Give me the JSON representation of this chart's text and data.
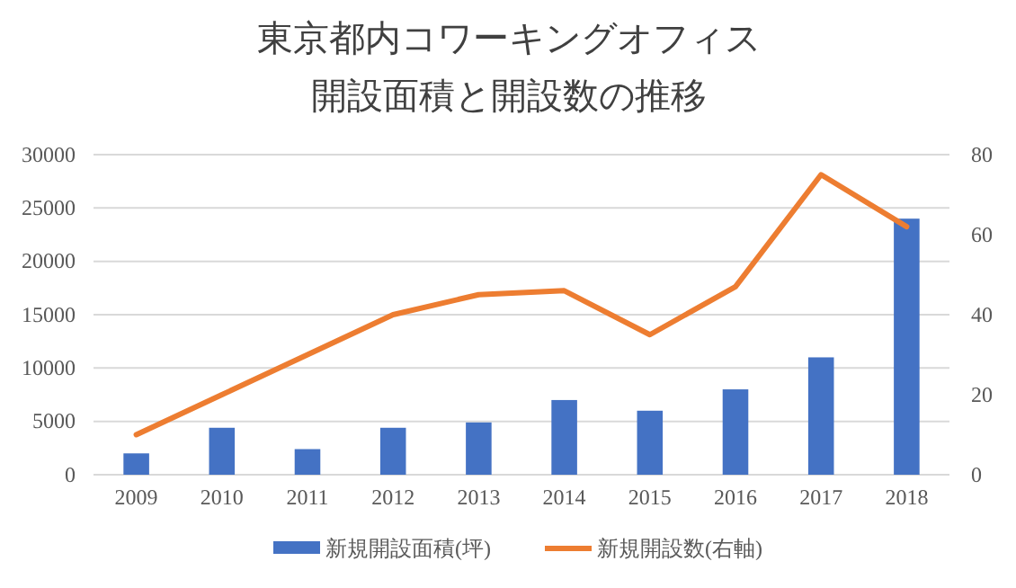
{
  "chart_data": {
    "type": "bar",
    "title": "東京都内コワーキングオフィス",
    "subtitle": "開設面積と開設数の推移",
    "categories": [
      "2009",
      "2010",
      "2011",
      "2012",
      "2013",
      "2014",
      "2015",
      "2016",
      "2017",
      "2018"
    ],
    "series": [
      {
        "name": "新規開設面積(坪)",
        "color": "#4472c4",
        "values": [
          2000,
          4400,
          2400,
          4400,
          4900,
          7000,
          6000,
          8000,
          11000,
          24000
        ]
      },
      {
        "name": "新規開設数(右軸)",
        "color": "#ed7d31",
        "type": "line",
        "axis": "y2",
        "values": [
          10,
          20,
          30,
          40,
          45,
          46,
          35,
          47,
          75,
          62
        ]
      }
    ],
    "ylim": [
      0,
      30000
    ],
    "yticks": [
      0,
      5000,
      10000,
      15000,
      20000,
      25000,
      30000
    ],
    "y2lim": [
      0,
      80
    ],
    "y2ticks": [
      0,
      20,
      40,
      60,
      80
    ],
    "grid": "y",
    "legend": "bottom",
    "marker": "none"
  }
}
